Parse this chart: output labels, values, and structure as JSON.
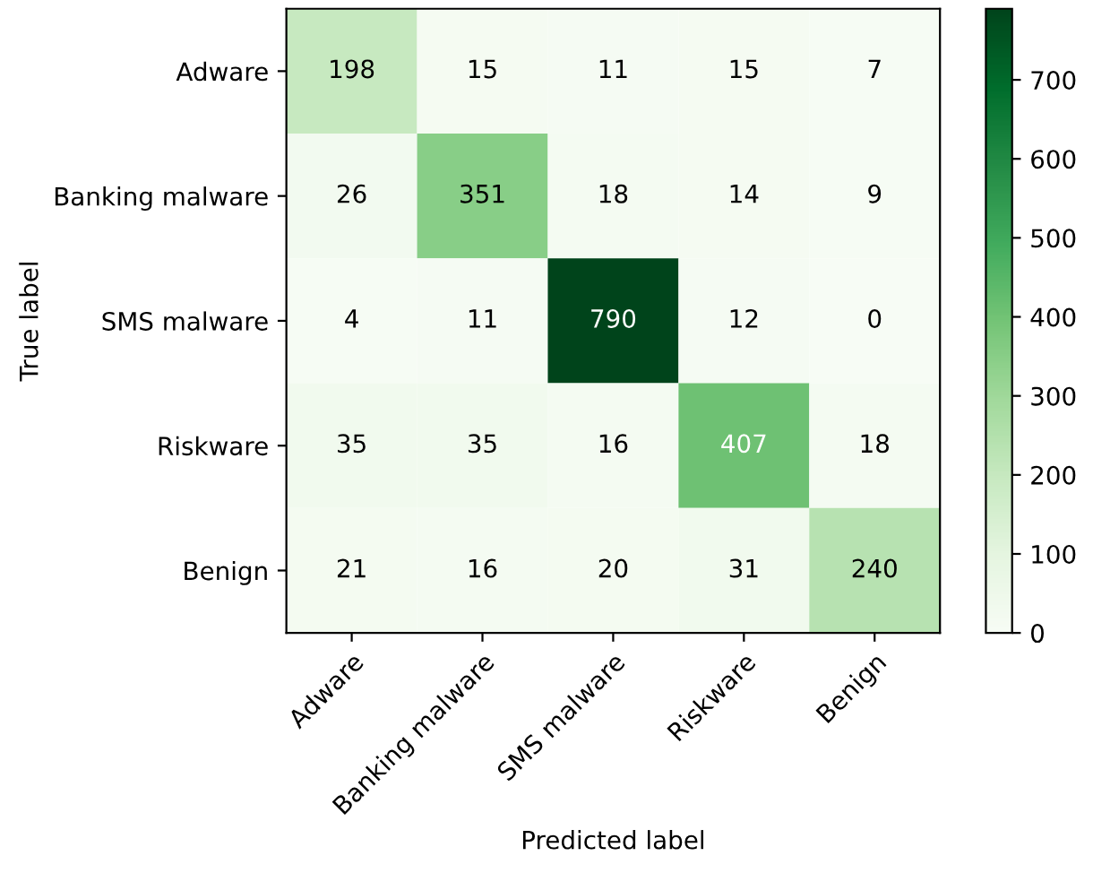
{
  "chart_data": {
    "type": "heatmap",
    "xlabel": "Predicted label",
    "ylabel": "True label",
    "categories": [
      "Adware",
      "Banking malware",
      "SMS malware",
      "Riskware",
      "Benign"
    ],
    "y_categories": [
      "Adware",
      "Banking malware",
      "SMS malware",
      "Riskware",
      "Benign"
    ],
    "cells": [
      [
        198,
        15,
        11,
        15,
        7
      ],
      [
        26,
        351,
        18,
        14,
        9
      ],
      [
        4,
        11,
        790,
        12,
        0
      ],
      [
        35,
        35,
        16,
        407,
        18
      ],
      [
        21,
        16,
        20,
        31,
        240
      ]
    ],
    "clim": [
      0,
      790
    ],
    "cticks": [
      0,
      100,
      200,
      300,
      400,
      500,
      600,
      700
    ],
    "data_labels": true,
    "grid": false
  }
}
